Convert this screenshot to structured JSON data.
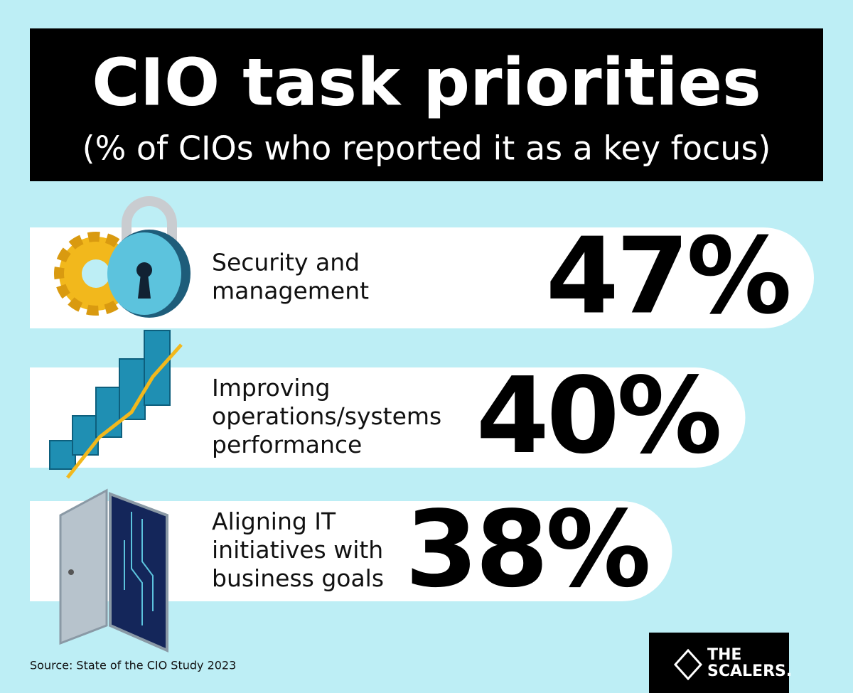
{
  "header": {
    "title": "CIO task priorities",
    "subtitle": "(% of CIOs who reported it as a key focus)"
  },
  "items": [
    {
      "label": [
        "Security and",
        "management"
      ],
      "value": "47%"
    },
    {
      "label": [
        "Improving",
        "operations/systems",
        "performance"
      ],
      "value": "40%"
    },
    {
      "label": [
        "Aligning IT",
        "initiatives with",
        "business goals"
      ],
      "value": "38%"
    }
  ],
  "source": "Source: State of the CIO Study 2023",
  "logo": [
    "THE",
    "SCALERS."
  ]
}
